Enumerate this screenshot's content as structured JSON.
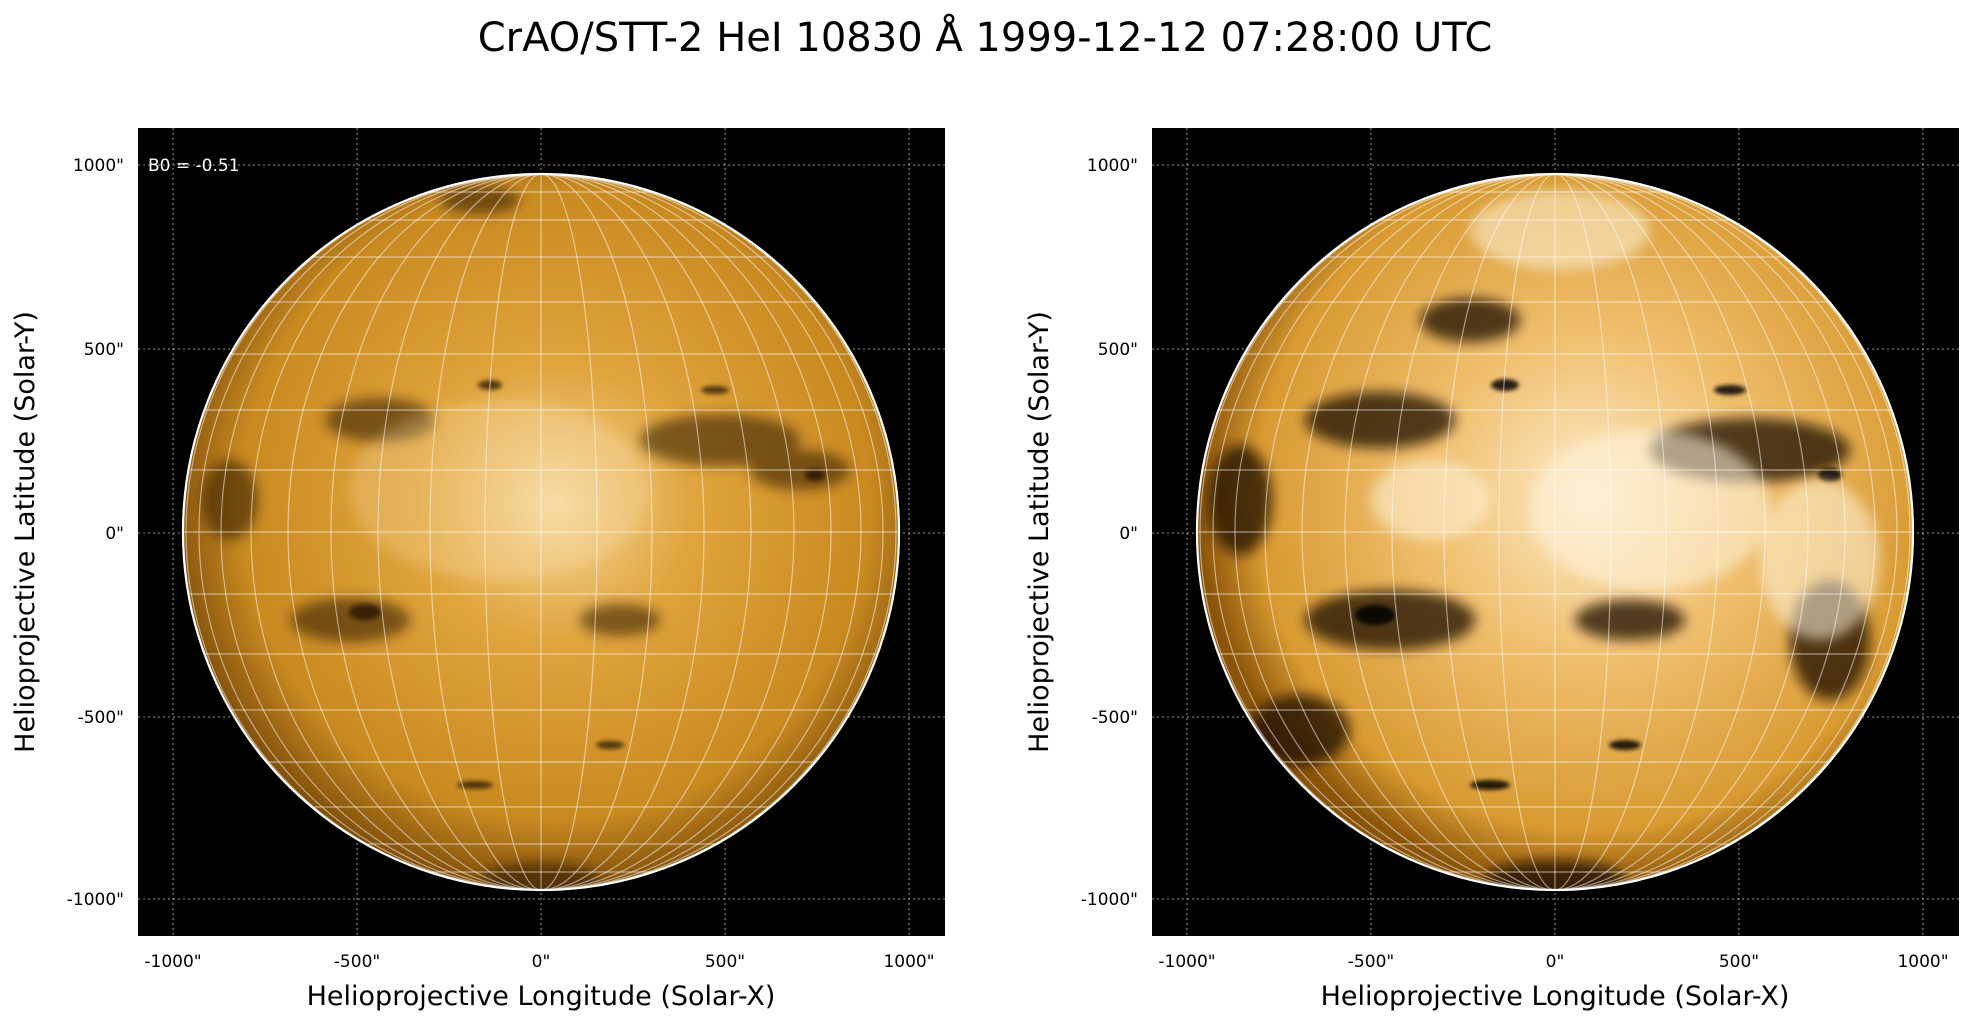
{
  "title": "CrAO/STT-2 HeI 10830 Å 1999-12-12 07:28:00 UTC",
  "colors": {
    "background": "#000000",
    "disk_dark": "#2a1200",
    "disk_mid": "#c98a20",
    "disk_bright": "#fde6b8",
    "grid": "#ffffff",
    "limb": "#ffffff"
  },
  "panels": [
    {
      "id": "left",
      "annotation": "B0 = -0.51",
      "xlabel": "Helioprojective Longitude (Solar-X)",
      "ylabel": "Helioprojective Latitude (Solar-Y)",
      "xticks": [
        "-1000\"",
        "-500\"",
        "0\"",
        "500\"",
        "1000\""
      ],
      "yticks": [
        "1000\"",
        "500\"",
        "0\"",
        "-500\"",
        "-1000\""
      ],
      "contrast": "normal"
    },
    {
      "id": "right",
      "annotation": "",
      "xlabel": "Helioprojective Longitude (Solar-X)",
      "ylabel": "Helioprojective Latitude (Solar-Y)",
      "xticks": [
        "-1000\"",
        "-500\"",
        "0\"",
        "500\"",
        "1000\""
      ],
      "yticks": [
        "1000\"",
        "500\"",
        "0\"",
        "-500\"",
        "-1000\""
      ],
      "contrast": "enhanced"
    }
  ]
}
